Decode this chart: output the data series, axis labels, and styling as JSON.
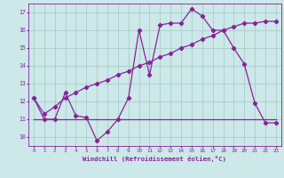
{
  "bg_color": "#cce8e8",
  "grid_color": "#aacccc",
  "line_color": "#882299",
  "xlabel": "Windchill (Refroidissement éolien,°C)",
  "xlim": [
    -0.5,
    23.5
  ],
  "ylim": [
    9.5,
    17.5
  ],
  "yticks": [
    10,
    11,
    12,
    13,
    14,
    15,
    16,
    17
  ],
  "xticks": [
    0,
    1,
    2,
    3,
    4,
    5,
    6,
    7,
    8,
    9,
    10,
    11,
    12,
    13,
    14,
    15,
    16,
    17,
    18,
    19,
    20,
    21,
    22,
    23
  ],
  "line1_x": [
    0,
    1,
    2,
    3,
    4,
    5,
    6,
    7,
    8,
    9,
    10,
    11,
    12,
    13,
    14,
    15,
    16,
    17,
    18,
    19,
    20,
    21,
    22,
    23
  ],
  "line1_y": [
    12.2,
    11.0,
    11.0,
    12.5,
    11.2,
    11.1,
    9.8,
    10.3,
    11.0,
    12.2,
    16.0,
    13.5,
    16.3,
    16.4,
    16.4,
    17.2,
    16.8,
    16.0,
    16.0,
    15.0,
    14.1,
    11.9,
    10.8,
    10.8
  ],
  "line2_x": [
    0,
    23
  ],
  "line2_y": [
    11.0,
    11.0
  ],
  "line3_x": [
    0,
    1,
    2,
    3,
    4,
    5,
    6,
    7,
    8,
    9,
    10,
    11,
    12,
    13,
    14,
    15,
    16,
    17,
    18,
    19,
    20,
    21,
    22,
    23
  ],
  "line3_y": [
    12.2,
    11.3,
    11.7,
    12.2,
    12.5,
    12.8,
    13.0,
    13.2,
    13.5,
    13.7,
    14.0,
    14.2,
    14.5,
    14.7,
    15.0,
    15.2,
    15.5,
    15.7,
    16.0,
    16.2,
    16.4,
    16.4,
    16.5,
    16.5
  ],
  "marker": "D",
  "marker_size": 2.2,
  "line_width": 0.9,
  "tick_fontsize": 4.2,
  "xlabel_fontsize": 5.2
}
